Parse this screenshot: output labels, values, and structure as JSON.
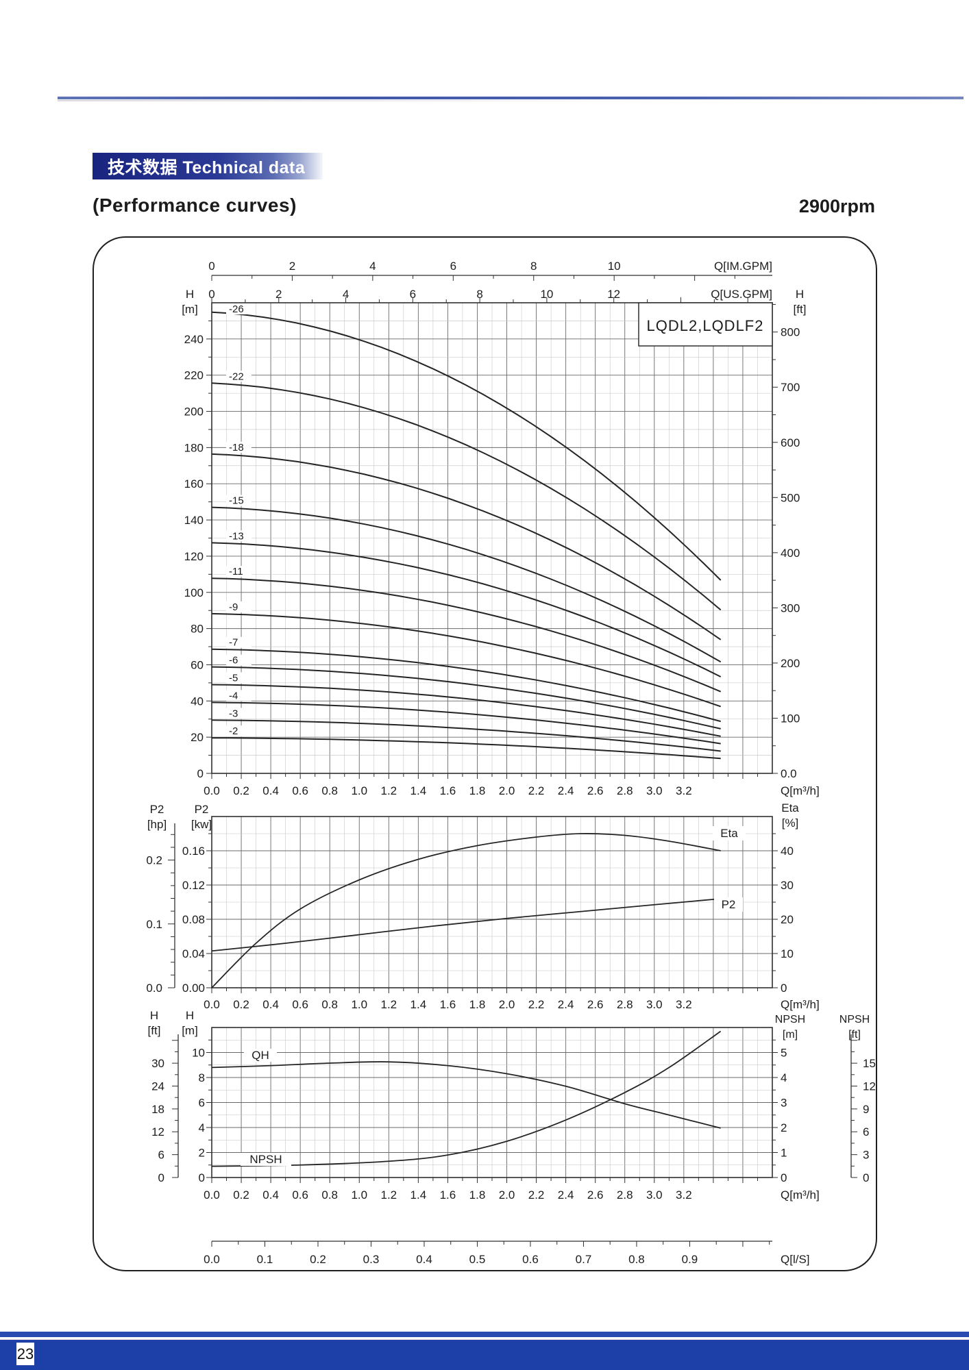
{
  "page": {
    "banner": "技术数据 Technical data",
    "title": "(Performance curves)",
    "rpm": "2900rpm",
    "page_number": "23",
    "colors": {
      "banner_dark": "#18247f",
      "banner_mid": "#3c4f9f",
      "accent_rule": "#3f57a7",
      "footer_bar": "#1d3fa8"
    }
  },
  "flow_axis": {
    "unit_label": "Q[m³/h]",
    "tick_labels": [
      "0.0",
      "0.2",
      "0.4",
      "0.6",
      "0.8",
      "1.0",
      "1.2",
      "1.4",
      "1.6",
      "1.8",
      "2.0",
      "2.2",
      "2.4",
      "2.6",
      "2.8",
      "3.0",
      "3.2"
    ],
    "tick_step": 0.2,
    "plot_max": 3.8
  },
  "chart_data": [
    {
      "type": "line",
      "name": "head-capacity-chart",
      "title_box": "LQDL2,LQDLF2",
      "rulers_top": [
        {
          "unit_label": "Q[IM.GPM]",
          "tick_labels": [
            "0",
            "2",
            "4",
            "6",
            "8",
            "10"
          ],
          "units_per_m3h": 3.666,
          "label_step": 2,
          "minor_step": 1,
          "max_units": 13
        },
        {
          "unit_label": "Q[US.GPM]",
          "tick_labels": [
            "0",
            "2",
            "4",
            "6",
            "8",
            "10",
            "12"
          ],
          "units_per_m3h": 4.403,
          "label_step": 2,
          "minor_step": 1,
          "max_units": 16
        }
      ],
      "y_left": {
        "name": "H",
        "unit": "[m]",
        "tick_labels": [
          "240",
          "220",
          "200",
          "180",
          "160",
          "140",
          "120",
          "100",
          "80",
          "60",
          "40",
          "20",
          "0"
        ],
        "label_step": 20,
        "minor_step": 10,
        "axis_max": 260
      },
      "y_right": {
        "name": "H",
        "unit": "[ft]",
        "tick_labels": [
          "800",
          "700",
          "600",
          "500",
          "400",
          "300",
          "200",
          "100",
          "0.0"
        ],
        "label_step": 100,
        "minor_step": 50
      },
      "stage_curve_labels": [
        "-26",
        "-22",
        "-18",
        "-15",
        "-13",
        "-11",
        "-9",
        "-7",
        "-6",
        "-5",
        "-4",
        "-3",
        "-2"
      ],
      "stages": [
        26,
        22,
        18,
        15,
        13,
        11,
        9,
        7,
        6,
        5,
        4,
        3,
        2
      ],
      "per_stage_head_model": {
        "h0": 9.8,
        "lin": -0.15,
        "quad": -0.435,
        "q_end": 3.45,
        "note": "H_per_stage(Q)=h0+lin*Q+quad*Q^2, total H = stages * H_per_stage"
      }
    },
    {
      "type": "line",
      "name": "power-efficiency-chart",
      "y_left_inner": {
        "name": "P2",
        "unit": "[kw]",
        "tick_labels": [
          "0.16",
          "0.12",
          "0.08",
          "0.04",
          "0.00"
        ],
        "label_step": 0.04,
        "minor_step": 0.02,
        "axis_max": 0.2
      },
      "y_left_outer": {
        "name": "P2",
        "unit": "[hp]",
        "tick_labels": [
          "0.2",
          "0.1",
          "0.0"
        ],
        "kw_per_hp": 0.7457
      },
      "y_right": {
        "name": "Eta",
        "unit": "[%]",
        "tick_labels": [
          "40",
          "30",
          "20",
          "10",
          "0"
        ],
        "label_step": 10,
        "minor_step": 5,
        "axis_max": 50
      },
      "series": [
        {
          "name": "P2",
          "label": "P2",
          "axis": "kw",
          "label_pos": [
            3.5,
            0.093
          ],
          "points": [
            [
              0,
              0.043
            ],
            [
              0.5,
              0.052
            ],
            [
              1.0,
              0.062
            ],
            [
              1.5,
              0.072
            ],
            [
              2.0,
              0.081
            ],
            [
              2.5,
              0.089
            ],
            [
              3.0,
              0.097
            ],
            [
              3.45,
              0.104
            ]
          ]
        },
        {
          "name": "Eta",
          "label": "Eta",
          "axis": "percent",
          "label_pos": [
            3.5,
            44
          ],
          "points": [
            [
              0,
              0
            ],
            [
              0.3,
              13
            ],
            [
              0.6,
              23
            ],
            [
              1.0,
              31.5
            ],
            [
              1.4,
              37.5
            ],
            [
              1.8,
              41.5
            ],
            [
              2.2,
              44
            ],
            [
              2.5,
              45
            ],
            [
              2.8,
              44.5
            ],
            [
              3.1,
              42.8
            ],
            [
              3.45,
              40
            ]
          ]
        }
      ]
    },
    {
      "type": "line",
      "name": "qh-npsh-chart",
      "y_left_inner": {
        "name": "H",
        "unit": "[m]",
        "tick_labels": [
          "10",
          "8",
          "6",
          "4",
          "2",
          "0"
        ],
        "label_step": 2,
        "minor_step": 1,
        "axis_max": 12
      },
      "y_left_outer": {
        "name": "H",
        "unit": "[ft]",
        "tick_labels": [
          "30",
          "24",
          "18",
          "12",
          "6",
          "0"
        ],
        "label_step_ft": 6,
        "minor_step_ft": 3
      },
      "y_right_inner": {
        "name": "NPSH",
        "unit": "[m]",
        "tick_labels": [
          "5",
          "4",
          "3",
          "2",
          "1",
          "0"
        ],
        "label_step": 1,
        "minor_step": 0.5,
        "axis_max": 6
      },
      "y_right_outer": {
        "name": "NPSH",
        "unit": "[ft]",
        "tick_labels": [
          "15",
          "12",
          "9",
          "6",
          "3",
          "0"
        ],
        "label_step_ft": 3,
        "minor_step_ft": 1.5
      },
      "ruler_bottom": {
        "unit_label": "Q[l/S]",
        "tick_labels": [
          "0.0",
          "0.1",
          "0.2",
          "0.3",
          "0.4",
          "0.5",
          "0.6",
          "0.7",
          "0.8",
          "0.9"
        ],
        "m3h_per_unit": 3.6,
        "label_step": 0.1,
        "minor_step": 0.05
      },
      "series": [
        {
          "name": "QH",
          "label": "QH",
          "axis": "m",
          "label_pos": [
            0.34,
            9.7
          ],
          "points": [
            [
              0,
              8.8
            ],
            [
              0.4,
              8.95
            ],
            [
              0.8,
              9.15
            ],
            [
              1.2,
              9.25
            ],
            [
              1.6,
              8.95
            ],
            [
              2.0,
              8.3
            ],
            [
              2.4,
              7.3
            ],
            [
              2.8,
              5.9
            ],
            [
              3.1,
              5.0
            ],
            [
              3.45,
              3.95
            ]
          ]
        },
        {
          "name": "NPSH",
          "label": "NPSH",
          "axis": "npsh_m",
          "label_pos": [
            0.36,
            0.45
          ],
          "points": [
            [
              0,
              0.45
            ],
            [
              0.6,
              0.5
            ],
            [
              1.2,
              0.65
            ],
            [
              1.6,
              0.9
            ],
            [
              2.0,
              1.45
            ],
            [
              2.4,
              2.3
            ],
            [
              2.8,
              3.4
            ],
            [
              3.1,
              4.4
            ],
            [
              3.45,
              5.85
            ]
          ]
        }
      ]
    }
  ]
}
